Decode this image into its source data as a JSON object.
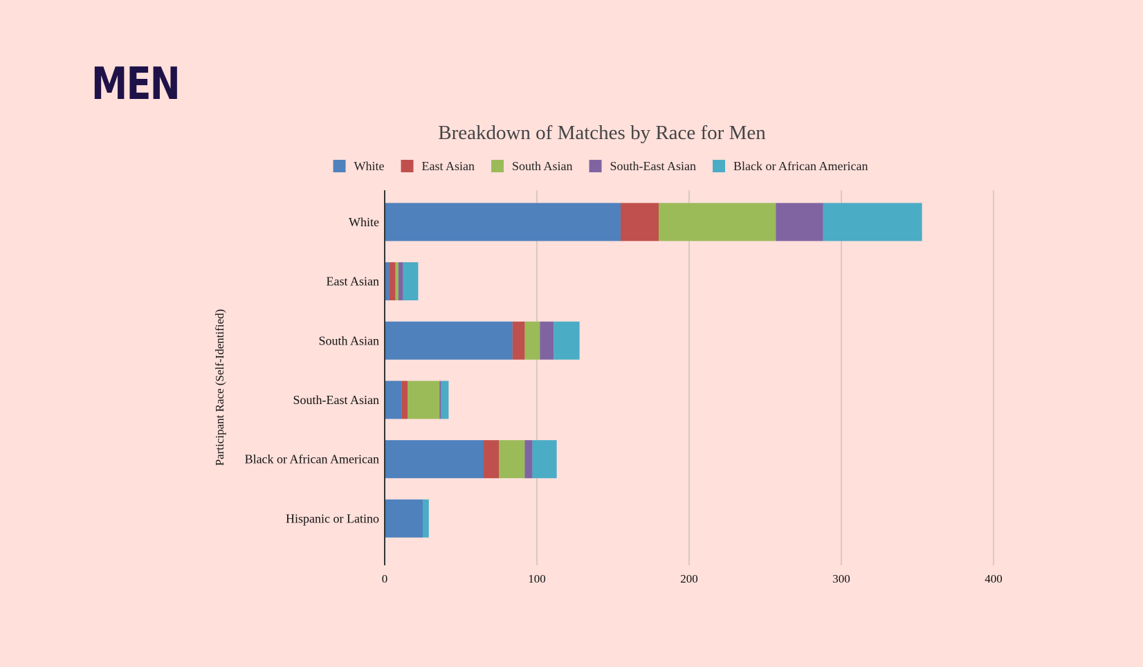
{
  "page": {
    "heading": "MEN"
  },
  "colors": {
    "background": "#FFE0DB",
    "heading": "#1E1248",
    "series": [
      "#4F81BD",
      "#C0504D",
      "#9BBB59",
      "#8064A2",
      "#4BACC6"
    ]
  },
  "chart_data": {
    "type": "bar",
    "orientation": "horizontal",
    "stacked": true,
    "title": "Breakdown of Matches by Race for Men",
    "xlabel": "",
    "ylabel": "Participant Race (Self-Identified)",
    "xlim": [
      0,
      400
    ],
    "xticks": [
      0,
      100,
      200,
      300,
      400
    ],
    "grid": true,
    "legend_position": "top",
    "categories": [
      "White",
      "East Asian",
      "South Asian",
      "South-East Asian",
      "Black or African American",
      "Hispanic or Latino"
    ],
    "series": [
      {
        "name": "White",
        "color": "#4F81BD",
        "values": [
          155,
          3,
          84,
          11,
          65,
          25
        ]
      },
      {
        "name": "East Asian",
        "color": "#C0504D",
        "values": [
          25,
          4,
          8,
          4,
          10,
          0
        ]
      },
      {
        "name": "South Asian",
        "color": "#9BBB59",
        "values": [
          77,
          2,
          10,
          21,
          17,
          0
        ]
      },
      {
        "name": "South-East Asian",
        "color": "#8064A2",
        "values": [
          31,
          3,
          9,
          1,
          5,
          0
        ]
      },
      {
        "name": "Black or African American",
        "color": "#4BACC6",
        "values": [
          65,
          10,
          17,
          5,
          16,
          4
        ]
      }
    ]
  }
}
